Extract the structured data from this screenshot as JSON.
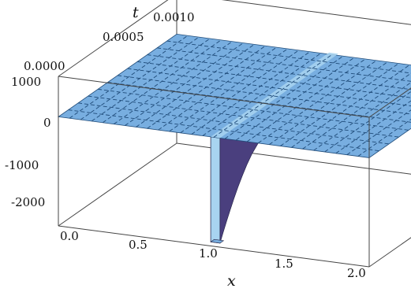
{
  "chart_data": {
    "type": "surface3d",
    "title": "",
    "x_label": "x",
    "t_label": "t",
    "x_range": [
      0,
      2
    ],
    "t_range": [
      0,
      0.001
    ],
    "z_range": [
      -2700,
      1000
    ],
    "x_ticks": [
      "0.0",
      "0.5",
      "1.0",
      "1.5",
      "2.0"
    ],
    "t_ticks": [
      "0.0000",
      "0.0005",
      "0.0010"
    ],
    "z_ticks": [
      "1000",
      "0",
      "-1000",
      "-2000"
    ],
    "surface": {
      "baseline_value": 0,
      "spike_center_x": 1.0,
      "spike_min_value": -2600,
      "spike_ridge_peak": 40
    },
    "colors": {
      "surface_top": "#78aee0",
      "surface_light": "#a8d4f0",
      "surface_shadow": "#4a3f7e",
      "grid_lines": "#1e4a78",
      "box": "#444444"
    }
  }
}
